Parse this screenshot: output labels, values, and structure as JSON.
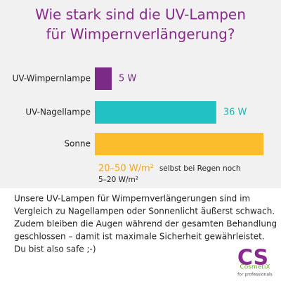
{
  "chart_data": {
    "type": "bar",
    "orientation": "horizontal",
    "title": [
      "Wie stark sind die UV-Lampen",
      "für Wimpernverlängerung?"
    ],
    "categories": [
      "UV-Wimpernlampe",
      "UV-Nagellampe",
      "Sonne"
    ],
    "values": [
      5,
      36,
      50
    ],
    "value_labels": [
      "5 W",
      "36 W",
      "20–50 W/m²"
    ],
    "colors": [
      "#7b2a86",
      "#22c1c3",
      "#fbbd2c"
    ],
    "label_colors": [
      "#7b2a86",
      "#1eb5b7",
      "#f2a516"
    ],
    "xlim": [
      0,
      50
    ],
    "annotation": [
      "selbst bei Regen noch",
      "5–20 W/m²"
    ]
  },
  "body_text": [
    "Unsere UV-Lampen für Wimpernverlängerungen sind im",
    "Vergleich zu Nagellampen oder Sonnenlicht äußerst schwach.",
    "Zudem bleiben die Augen während der gesamten Behandlung",
    "geschlossen – damit ist maximale Sicherheit gewährleistet.",
    "Du bist also safe ;-)"
  ],
  "logo": {
    "mark": "CS",
    "name": "CosmetiX",
    "tagline": "for professionals"
  }
}
